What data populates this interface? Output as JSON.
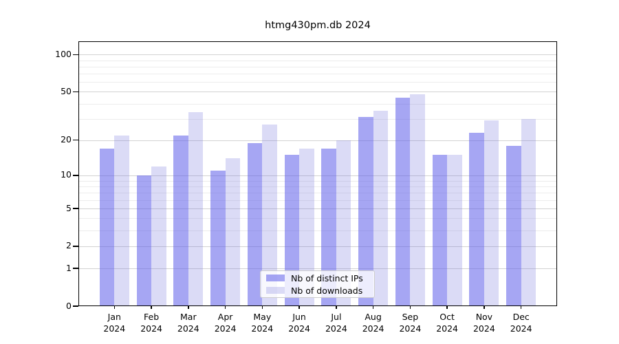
{
  "title": "htmg430pm.db 2024",
  "chart_data": {
    "type": "bar",
    "title": "htmg430pm.db 2024",
    "categories": [
      "Jan 2024",
      "Feb 2024",
      "Mar 2024",
      "Apr 2024",
      "May 2024",
      "Jun 2024",
      "Jul 2024",
      "Aug 2024",
      "Sep 2024",
      "Oct 2024",
      "Nov 2024",
      "Dec 2024"
    ],
    "series": [
      {
        "name": "Nb of distinct IPs",
        "color": "#a4a4f2",
        "color_rgba": "rgba(93,93,233,0.55)",
        "values": [
          17,
          10,
          22,
          11,
          19,
          15,
          17,
          31,
          45,
          15,
          23,
          18
        ]
      },
      {
        "name": "Nb of downloads",
        "color": "#dbdbf7",
        "color_rgba": "rgba(110,110,220,0.25)",
        "values": [
          22,
          12,
          34,
          14,
          27,
          17,
          20,
          35,
          48,
          15,
          29,
          30
        ]
      }
    ],
    "xlabel": "",
    "ylabel": "",
    "yscale": "log1p",
    "ylim": [
      0,
      128
    ],
    "yticks": [
      0,
      1,
      2,
      5,
      10,
      20,
      50,
      100
    ],
    "minor_gridlines": [
      3,
      4,
      6,
      7,
      8,
      9,
      30,
      40,
      60,
      70,
      80,
      90
    ],
    "grid": "on",
    "legend_position": "lower center"
  },
  "legend": {
    "entries": [
      "Nb of distinct IPs",
      "Nb of downloads"
    ],
    "background": "rgba(255,255,255,0.8)",
    "border_color": "#cccccc"
  },
  "colors": {
    "major_gridline": "#d2d2d2",
    "minor_gridline": "#ececec",
    "axis": "#000000",
    "background": "#ffffff"
  }
}
